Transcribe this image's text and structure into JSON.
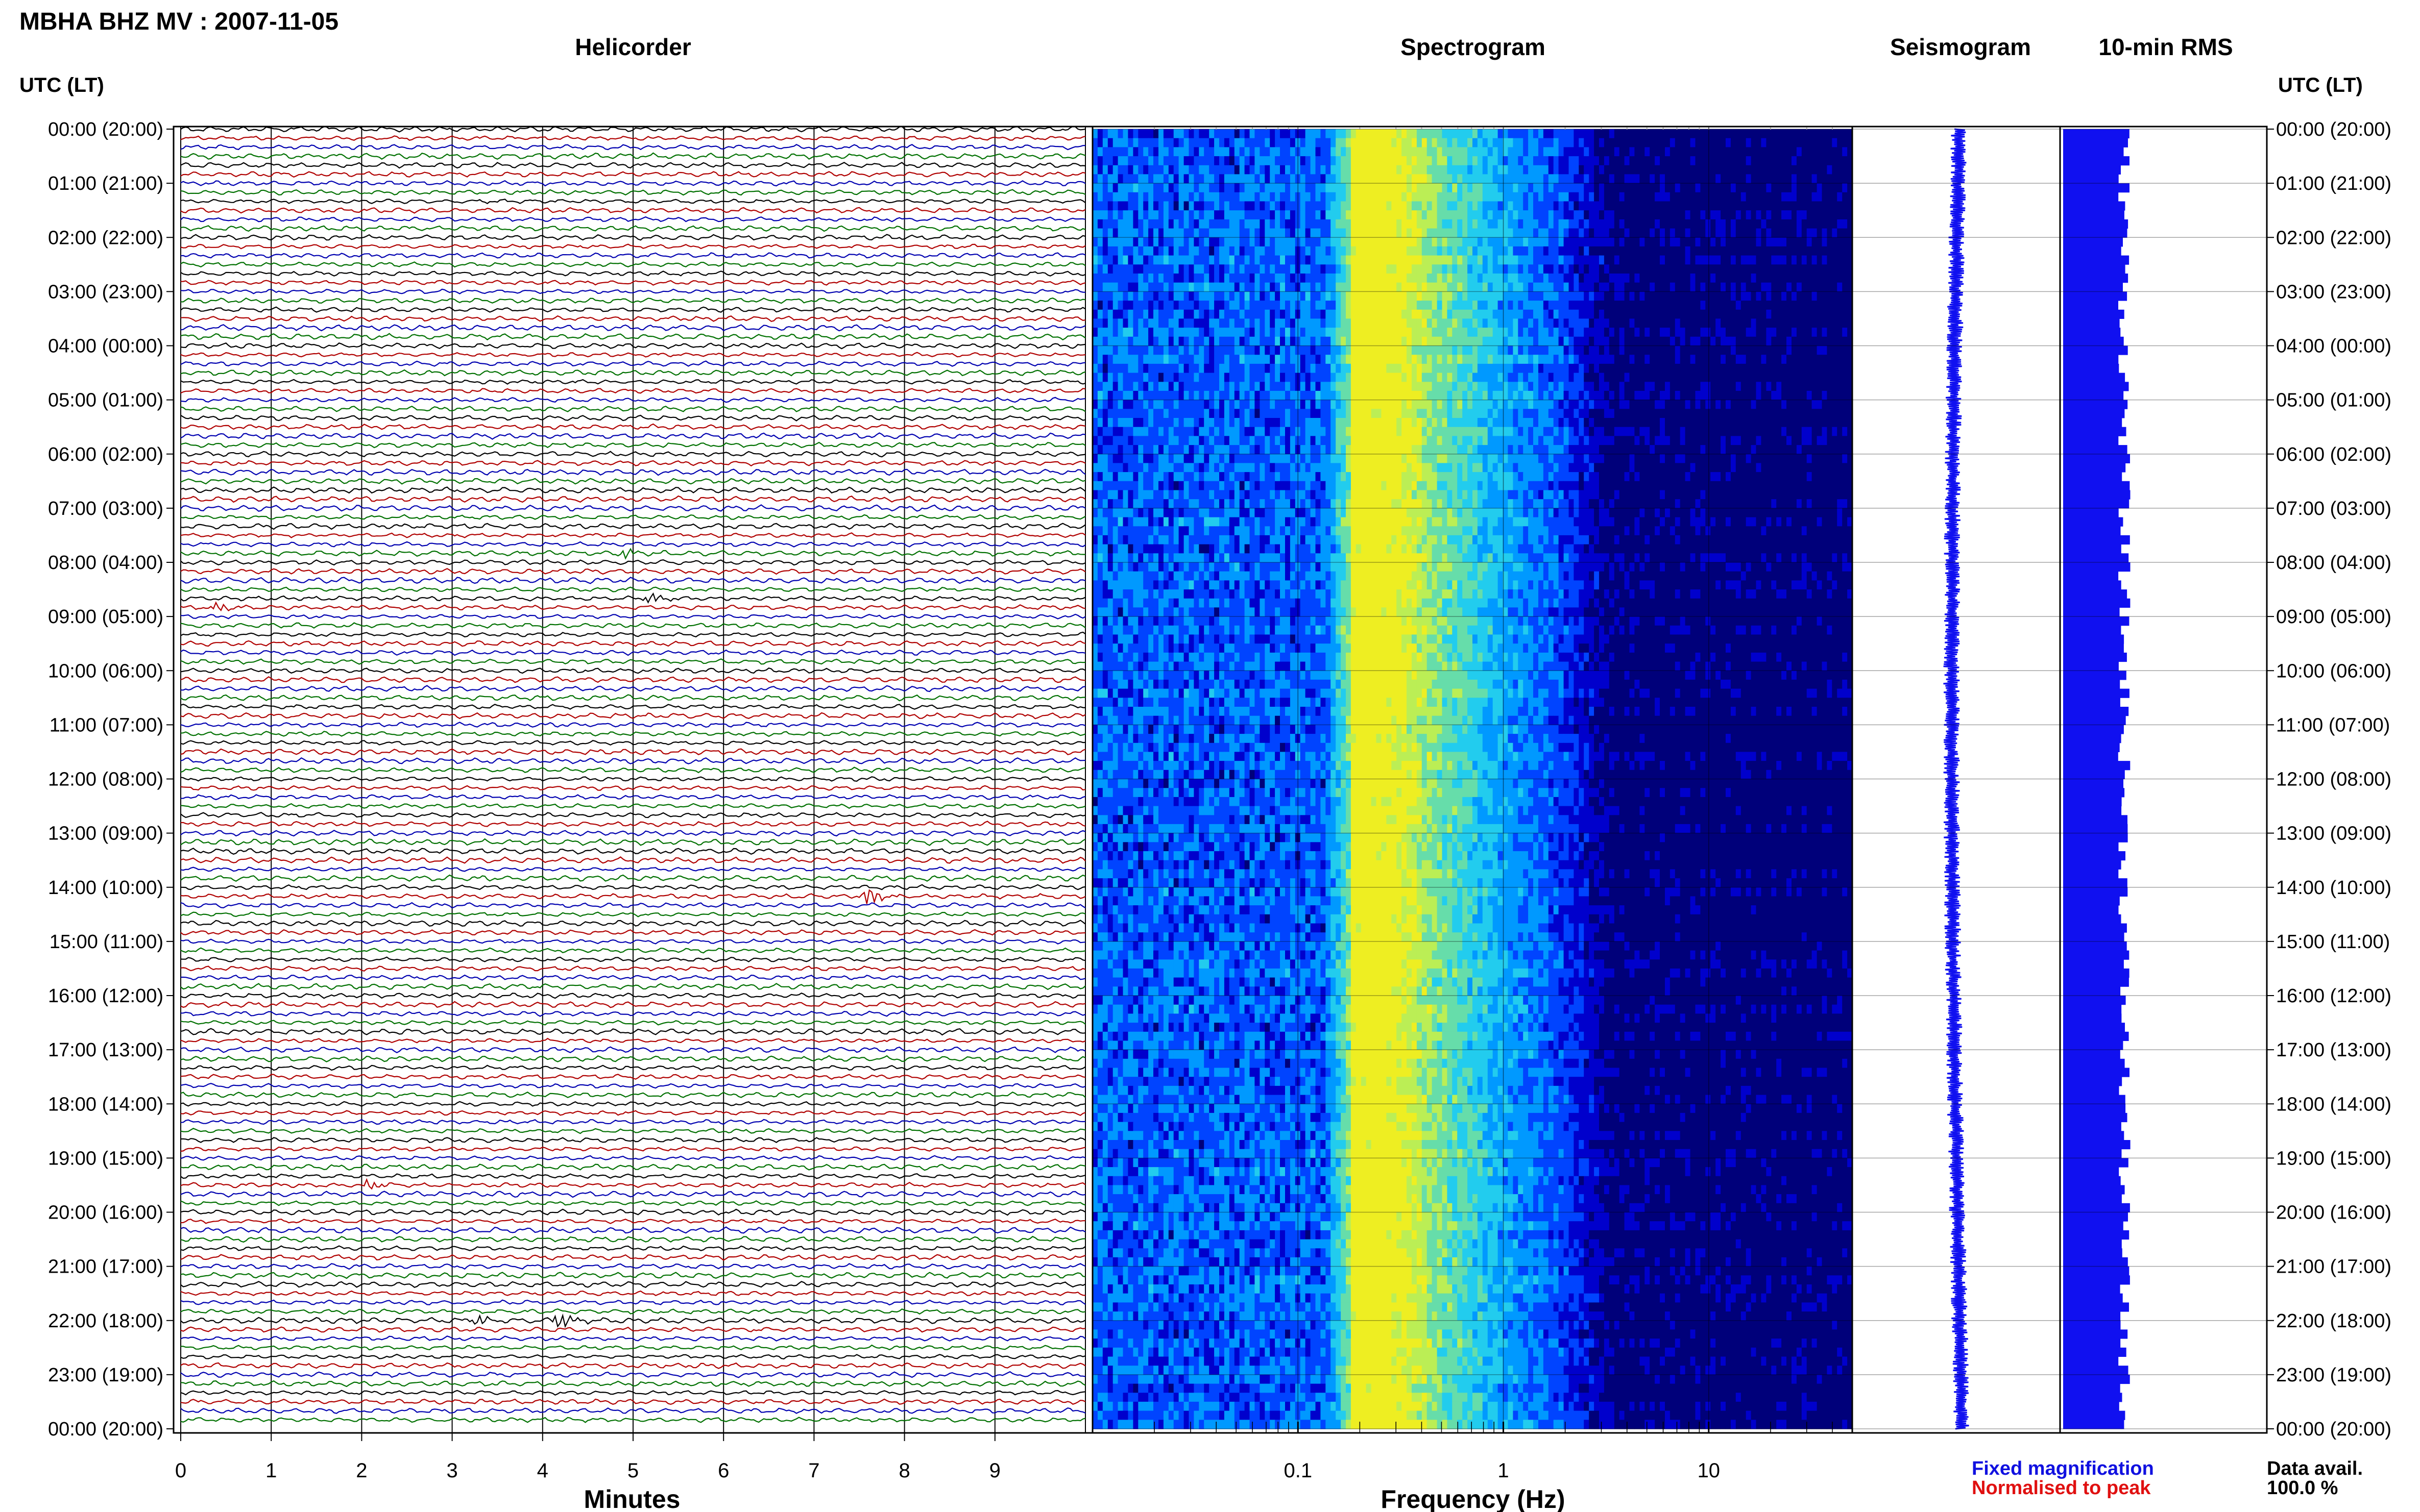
{
  "header": {
    "title": "MBHA BHZ MV : 2007-11-05",
    "utc_lt_left": "UTC (LT)",
    "utc_lt_right": "UTC (LT)"
  },
  "panels": {
    "helicorder": "Helicorder",
    "spectrogram": "Spectrogram",
    "seismogram": "Seismogram",
    "rms": "10-min RMS"
  },
  "time_labels": [
    "00:00 (20:00)",
    "01:00 (21:00)",
    "02:00 (22:00)",
    "03:00 (23:00)",
    "04:00 (00:00)",
    "05:00 (01:00)",
    "06:00 (02:00)",
    "07:00 (03:00)",
    "08:00 (04:00)",
    "09:00 (05:00)",
    "10:00 (06:00)",
    "11:00 (07:00)",
    "12:00 (08:00)",
    "13:00 (09:00)",
    "14:00 (10:00)",
    "15:00 (11:00)",
    "16:00 (12:00)",
    "17:00 (13:00)",
    "18:00 (14:00)",
    "19:00 (15:00)",
    "20:00 (16:00)",
    "21:00 (17:00)",
    "22:00 (18:00)",
    "23:00 (19:00)",
    "00:00 (20:00)"
  ],
  "legend": {
    "fixed": "Fixed magnification",
    "normalised": "Normalised to peak",
    "data_avail_label": "Data avail.",
    "data_avail_value": "100.0 %",
    "colors": {
      "fixed": "#1010e0",
      "normalised": "#e01010"
    }
  },
  "chart_data": [
    {
      "type": "line",
      "name": "helicorder",
      "xlabel": "Minutes",
      "x_ticks": [
        "0",
        "1",
        "2",
        "3",
        "4",
        "5",
        "6",
        "7",
        "8",
        "9"
      ],
      "xlim": [
        0,
        10
      ],
      "rows": 144,
      "trace_colors": [
        "#000000",
        "#b00000",
        "#0000b0",
        "#007000"
      ],
      "events": [
        {
          "row": 85,
          "minute": 7.6,
          "amplitude": 3.0
        },
        {
          "row": 132,
          "minute": 4.2,
          "amplitude": 2.5
        },
        {
          "row": 132,
          "minute": 3.3,
          "amplitude": 1.5
        },
        {
          "row": 52,
          "minute": 5.2,
          "amplitude": 1.6
        },
        {
          "row": 47,
          "minute": 4.9,
          "amplitude": 1.4
        },
        {
          "row": 117,
          "minute": 2.1,
          "amplitude": 1.4
        },
        {
          "row": 53,
          "minute": 0.4,
          "amplitude": 1.3
        }
      ]
    },
    {
      "type": "heatmap",
      "name": "spectrogram",
      "xlabel": "Frequency (Hz)",
      "x_scale": "log",
      "x_ticks": [
        "0.1",
        "1",
        "10"
      ],
      "xlim": [
        0.01,
        50
      ],
      "colormap": [
        "#00007a",
        "#0000cc",
        "#0044ff",
        "#0099ff",
        "#22ccee",
        "#66ddaa",
        "#bbee55",
        "#eeee22"
      ]
    },
    {
      "type": "line",
      "name": "seismogram",
      "color": "#1010f0"
    },
    {
      "type": "bar",
      "name": "10-min RMS",
      "color": "#1010f0",
      "bins": 144,
      "relative_level_mean": 0.3
    }
  ]
}
